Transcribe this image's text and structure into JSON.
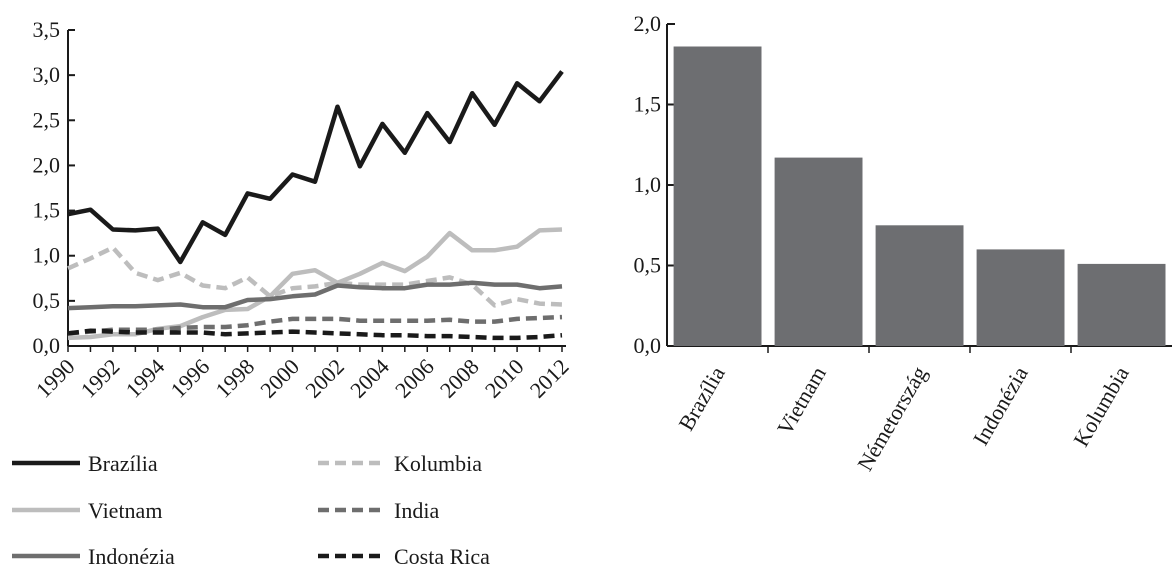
{
  "chart_data": [
    {
      "type": "line",
      "x": [
        1990,
        1991,
        1992,
        1993,
        1994,
        1995,
        1996,
        1997,
        1998,
        1999,
        2000,
        2001,
        2002,
        2003,
        2004,
        2005,
        2006,
        2007,
        2008,
        2009,
        2010,
        2011,
        2012
      ],
      "xticks": [
        "1990",
        "1992",
        "1994",
        "1996",
        "1998",
        "2000",
        "2002",
        "2004",
        "2006",
        "2008",
        "2010",
        "2012"
      ],
      "yticks": [
        "0,0",
        "0,5",
        "1,0",
        "1,5",
        "2,0",
        "2,5",
        "3,0",
        "3,5"
      ],
      "ylim": [
        0,
        3.5
      ],
      "grid": false,
      "legend_position": "bottom",
      "series": [
        {
          "name": "Brazília",
          "color": "#1a1a1a",
          "dash": "solid",
          "values": [
            1.46,
            1.51,
            1.29,
            1.28,
            1.3,
            0.93,
            1.37,
            1.23,
            1.69,
            1.63,
            1.9,
            1.82,
            2.65,
            1.99,
            2.46,
            2.14,
            2.58,
            2.26,
            2.8,
            2.45,
            2.91,
            2.71,
            3.04
          ]
        },
        {
          "name": "Vietnam",
          "color": "#bdbdbd",
          "dash": "solid",
          "values": [
            0.09,
            0.1,
            0.13,
            0.13,
            0.19,
            0.22,
            0.32,
            0.4,
            0.41,
            0.55,
            0.8,
            0.84,
            0.7,
            0.8,
            0.92,
            0.83,
            0.99,
            1.25,
            1.06,
            1.06,
            1.1,
            1.28,
            1.29
          ]
        },
        {
          "name": "Indonézia",
          "color": "#6e6e6e",
          "dash": "solid",
          "values": [
            0.42,
            0.43,
            0.44,
            0.44,
            0.45,
            0.46,
            0.43,
            0.43,
            0.51,
            0.52,
            0.55,
            0.57,
            0.67,
            0.65,
            0.64,
            0.64,
            0.68,
            0.68,
            0.7,
            0.68,
            0.68,
            0.64,
            0.66
          ]
        },
        {
          "name": "Kolumbia",
          "color": "#bdbdbd",
          "dash": "dashed",
          "values": [
            0.86,
            0.97,
            1.09,
            0.81,
            0.73,
            0.81,
            0.67,
            0.64,
            0.76,
            0.55,
            0.64,
            0.66,
            0.7,
            0.68,
            0.68,
            0.68,
            0.72,
            0.76,
            0.68,
            0.45,
            0.52,
            0.47,
            0.46
          ]
        },
        {
          "name": "India",
          "color": "#6e6e6e",
          "dash": "dashed",
          "values": [
            0.14,
            0.16,
            0.18,
            0.18,
            0.18,
            0.2,
            0.21,
            0.21,
            0.23,
            0.27,
            0.3,
            0.3,
            0.3,
            0.28,
            0.28,
            0.28,
            0.28,
            0.29,
            0.27,
            0.27,
            0.3,
            0.31,
            0.32
          ]
        },
        {
          "name": "Costa Rica",
          "color": "#1a1a1a",
          "dash": "dashed",
          "values": [
            0.14,
            0.17,
            0.16,
            0.15,
            0.15,
            0.15,
            0.15,
            0.13,
            0.14,
            0.15,
            0.16,
            0.15,
            0.14,
            0.13,
            0.12,
            0.12,
            0.11,
            0.11,
            0.1,
            0.09,
            0.09,
            0.1,
            0.12
          ]
        }
      ]
    },
    {
      "type": "bar",
      "categories": [
        "Brazília",
        "Vietnam",
        "Németország",
        "Indonézia",
        "Kolumbia"
      ],
      "values": [
        1.86,
        1.17,
        0.75,
        0.6,
        0.51
      ],
      "yticks": [
        "0,0",
        "0,5",
        "1,0",
        "1,5",
        "2,0"
      ],
      "ylim": [
        0,
        2.0
      ],
      "grid": false,
      "bar_color": "#6d6e71"
    }
  ]
}
